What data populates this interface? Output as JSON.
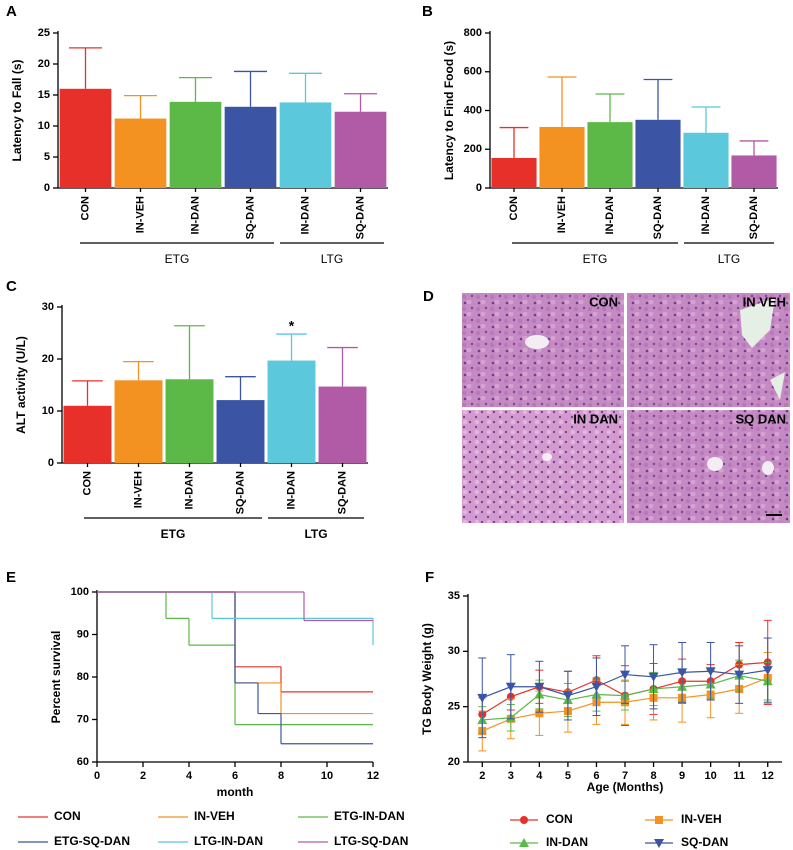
{
  "chart_data": [
    {
      "type": "bar",
      "panel": "A",
      "ylabel": "Latency to Fall (s)",
      "categories": [
        "CON",
        "IN-VEH",
        "IN-DAN",
        "SQ-DAN",
        "IN-DAN",
        "SQ-DAN"
      ],
      "values": [
        16,
        11.2,
        13.9,
        13.1,
        13.8,
        12.3
      ],
      "errors": [
        6.6,
        3.7,
        3.9,
        5.7,
        4.7,
        2.9
      ],
      "colors": [
        "#e8302a",
        "#f39121",
        "#5cb947",
        "#3b55a4",
        "#5bc8dc",
        "#b15aa6"
      ],
      "groups": [
        {
          "label": "ETG",
          "count": 4
        },
        {
          "label": "LTG",
          "count": 2
        }
      ],
      "ylim": [
        0,
        25
      ],
      "yticks": [
        0,
        5,
        10,
        15,
        20,
        25
      ]
    },
    {
      "type": "bar",
      "panel": "B",
      "ylabel": "Latency to Find Food (s)",
      "categories": [
        "CON",
        "IN-VEH",
        "IN-DAN",
        "SQ-DAN",
        "IN-DAN",
        "SQ-DAN"
      ],
      "values": [
        155,
        315,
        340,
        352,
        285,
        168
      ],
      "errors": [
        157,
        258,
        145,
        208,
        133,
        75
      ],
      "colors": [
        "#e8302a",
        "#f39121",
        "#5cb947",
        "#3b55a4",
        "#5bc8dc",
        "#b15aa6"
      ],
      "groups": [
        {
          "label": "ETG",
          "count": 4
        },
        {
          "label": "LTG",
          "count": 2
        }
      ],
      "ylim": [
        0,
        800
      ],
      "yticks": [
        0,
        200,
        400,
        600,
        800
      ]
    },
    {
      "type": "bar",
      "panel": "C",
      "ylabel": "ALT activity (U/L)",
      "categories": [
        "CON",
        "IN-VEH",
        "IN-DAN",
        "SQ-DAN",
        "IN-DAN",
        "SQ-DAN"
      ],
      "values": [
        11,
        15.9,
        16.1,
        12.1,
        19.7,
        14.7
      ],
      "errors": [
        4.8,
        3.6,
        10.3,
        4.5,
        5.1,
        7.5
      ],
      "colors": [
        "#e8302a",
        "#f39121",
        "#5cb947",
        "#3b55a4",
        "#5bc8dc",
        "#b15aa6"
      ],
      "significance": [
        null,
        null,
        null,
        null,
        "*",
        null
      ],
      "groups": [
        {
          "label": "ETG",
          "count": 4
        },
        {
          "label": "LTG",
          "count": 2
        }
      ],
      "ylim": [
        0,
        30
      ],
      "yticks": [
        0,
        10,
        20,
        30
      ]
    },
    {
      "type": "step",
      "panel": "E",
      "xlabel": "month",
      "ylabel": "Percent survival",
      "xlim": [
        0,
        12
      ],
      "xticks": [
        0,
        2,
        4,
        6,
        8,
        10,
        12
      ],
      "ylim": [
        60,
        100
      ],
      "yticks": [
        60,
        70,
        80,
        90,
        100
      ],
      "series": [
        {
          "name": "CON",
          "color": "#e8302a",
          "x": [
            0,
            6,
            8
          ],
          "values": [
            100,
            82.4,
            76.5
          ]
        },
        {
          "name": "IN-VEH",
          "color": "#f39121",
          "x": [
            0,
            6,
            8
          ],
          "values": [
            100,
            78.6,
            71.4
          ]
        },
        {
          "name": "ETG-IN-DAN",
          "color": "#5cb947",
          "x": [
            0,
            3,
            4,
            6
          ],
          "values": [
            100,
            93.8,
            87.5,
            68.8
          ]
        },
        {
          "name": "ETG-SQ-DAN",
          "color": "#3b55a4",
          "x": [
            0,
            6,
            7,
            8
          ],
          "values": [
            100,
            78.6,
            71.4,
            64.3
          ]
        },
        {
          "name": "LTG-IN-DAN",
          "color": "#5bc8dc",
          "x": [
            0,
            5,
            12
          ],
          "values": [
            100,
            93.8,
            87.5
          ]
        },
        {
          "name": "LTG-SQ-DAN",
          "color": "#b15aa6",
          "x": [
            0,
            9
          ],
          "values": [
            100,
            93.3
          ]
        }
      ]
    },
    {
      "type": "line",
      "panel": "F",
      "xlabel": "Age (Months)",
      "ylabel": "TG Body Weight (g)",
      "x": [
        2,
        3,
        4,
        5,
        6,
        7,
        8,
        9,
        10,
        11,
        12
      ],
      "xlim": [
        1.5,
        12.5
      ],
      "xticks": [
        2,
        3,
        4,
        5,
        6,
        7,
        8,
        9,
        10,
        11,
        12
      ],
      "ylim": [
        20,
        35
      ],
      "yticks": [
        20,
        25,
        30,
        35
      ],
      "series": [
        {
          "name": "CON",
          "color": "#e8302a",
          "marker": "circle",
          "values": [
            24.3,
            25.9,
            26.8,
            26.3,
            27.4,
            26.0,
            26.6,
            27.3,
            27.3,
            28.8,
            29.0
          ],
          "errors": [
            1.5,
            1.2,
            1.5,
            1.9,
            2.2,
            2.7,
            2.3,
            2.0,
            1.5,
            2.0,
            3.8
          ]
        },
        {
          "name": "IN-VEH",
          "color": "#f39121",
          "marker": "square",
          "values": [
            22.8,
            23.9,
            24.4,
            24.6,
            25.4,
            25.4,
            25.8,
            25.8,
            26.1,
            26.6,
            27.6
          ],
          "errors": [
            1.8,
            1.8,
            2.0,
            1.9,
            2.0,
            2.0,
            2.0,
            2.2,
            2.1,
            2.2,
            2.3
          ]
        },
        {
          "name": "IN-DAN",
          "color": "#5cb947",
          "marker": "triangle",
          "values": [
            23.8,
            24.0,
            26.1,
            25.6,
            26.1,
            26.0,
            26.6,
            26.8,
            27.0,
            27.8,
            27.3
          ],
          "errors": [
            1.2,
            1.2,
            1.3,
            1.5,
            1.5,
            1.3,
            1.5,
            1.4,
            1.3,
            1.4,
            1.7
          ]
        },
        {
          "name": "SQ-DAN",
          "color": "#3b55a4",
          "marker": "triangle-down",
          "values": [
            25.8,
            26.8,
            26.8,
            26.0,
            26.8,
            27.9,
            27.7,
            28.1,
            28.2,
            27.9,
            28.3
          ],
          "errors": [
            3.6,
            2.9,
            2.3,
            2.2,
            2.6,
            2.6,
            2.9,
            2.7,
            2.6,
            2.6,
            2.9
          ]
        }
      ]
    }
  ],
  "image_panel": {
    "panel": "D",
    "labels": [
      "CON",
      "IN VEH",
      "IN DAN",
      "SQ DAN"
    ]
  }
}
